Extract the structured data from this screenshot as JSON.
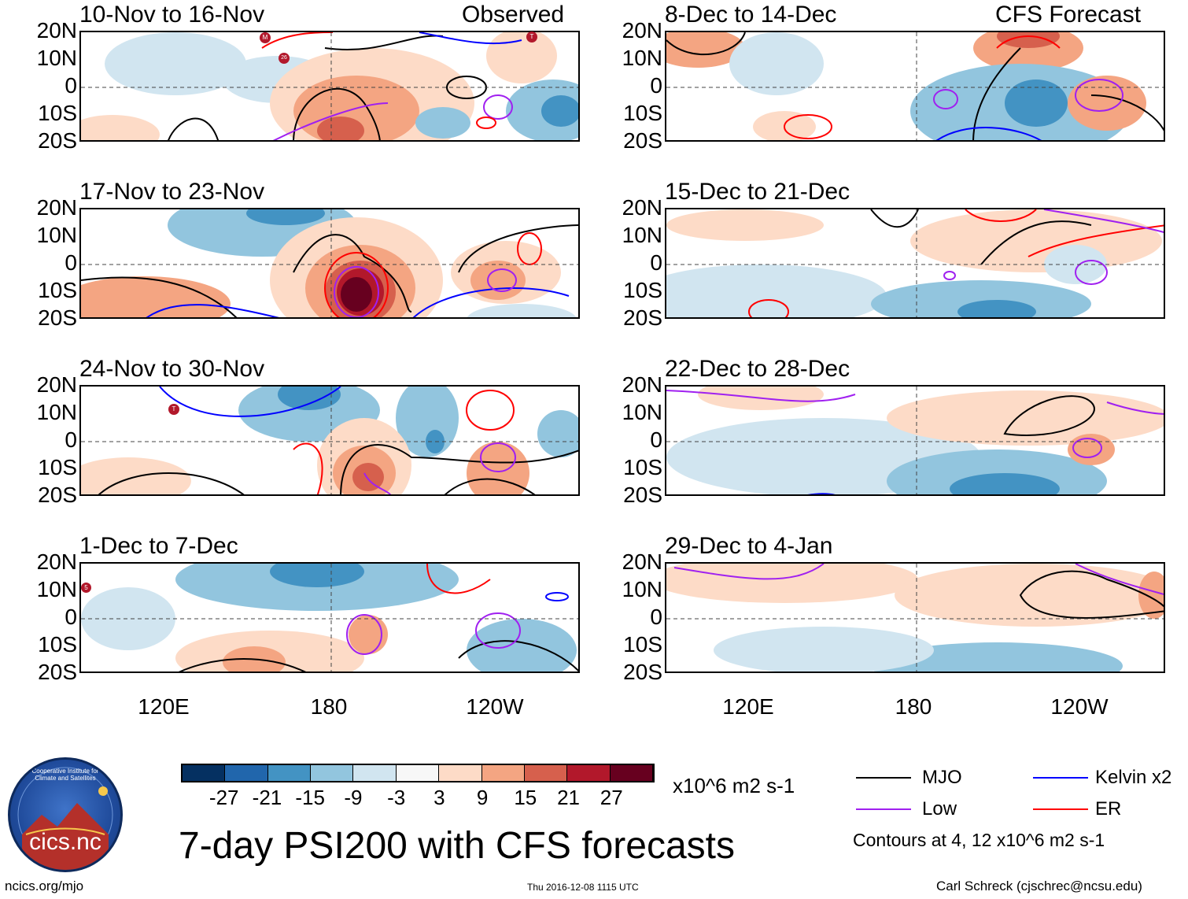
{
  "observed_label": "Observed",
  "forecast_label": "CFS Forecast",
  "panels_left": [
    {
      "title": "10-Nov to 16-Nov"
    },
    {
      "title": "17-Nov to 23-Nov"
    },
    {
      "title": "24-Nov to 30-Nov"
    },
    {
      "title": "1-Dec to 7-Dec"
    }
  ],
  "panels_right": [
    {
      "title": "8-Dec to 14-Dec"
    },
    {
      "title": "15-Dec to 21-Dec"
    },
    {
      "title": "22-Dec to 28-Dec"
    },
    {
      "title": "29-Dec to 4-Jan"
    }
  ],
  "lat_labels": [
    "20N",
    "10N",
    "0",
    "10S",
    "20S"
  ],
  "lon_labels": [
    "120E",
    "180",
    "120W"
  ],
  "colorbar": {
    "ticks": [
      "-27",
      "-21",
      "-15",
      "-9",
      "-3",
      "3",
      "9",
      "15",
      "21",
      "27"
    ],
    "colors": [
      "#053061",
      "#2166ac",
      "#4393c3",
      "#92c5de",
      "#d1e5f0",
      "#f7f7f7",
      "#fddbc7",
      "#f4a582",
      "#d6604d",
      "#b2182b",
      "#67001f"
    ],
    "units": "x10^6 m2 s-1"
  },
  "legend": {
    "mjo": {
      "label": "MJO",
      "color": "#000000"
    },
    "kelvin": {
      "label": "Kelvin x2",
      "color": "#0000ff"
    },
    "low": {
      "label": "Low",
      "color": "#a020f0"
    },
    "er": {
      "label": "ER",
      "color": "#ff0000"
    },
    "contours": "Contours at 4, 12 x10^6 m2 s-1"
  },
  "logo_text": "cics.nc",
  "logo_ring_text": "Cooperative Institute for Climate and Satellites",
  "main_title": "7-day PSI200 with CFS forecasts",
  "footer": {
    "url": "ncics.org/mjo",
    "timestamp": "Thu 2016-12-08 1115 UTC",
    "credit": "Carl Schreck (cjschrec@ncsu.edu)"
  },
  "storm_markers": [
    {
      "panel": 0,
      "label": "M"
    },
    {
      "panel": 0,
      "label": "26"
    },
    {
      "panel": 0,
      "label": "T"
    },
    {
      "panel": 2,
      "label": "T"
    },
    {
      "panel": 3,
      "label": "5"
    }
  ]
}
